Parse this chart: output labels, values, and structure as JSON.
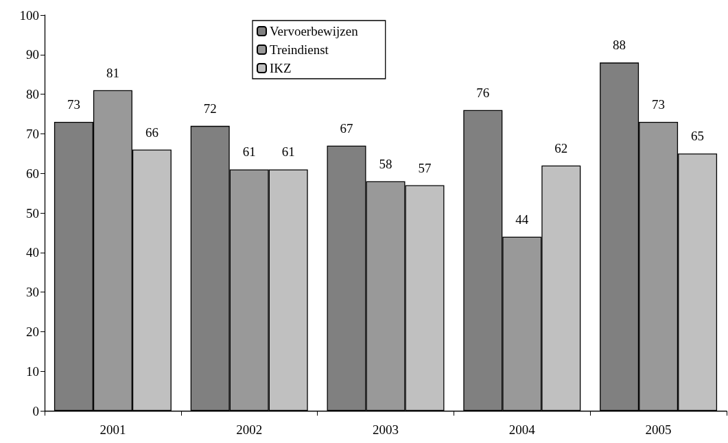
{
  "chart_data": {
    "type": "bar",
    "categories": [
      "2001",
      "2002",
      "2003",
      "2004",
      "2005"
    ],
    "series": [
      {
        "name": "Vervoerbewijzen",
        "color": "#808080",
        "values": [
          73,
          72,
          67,
          76,
          88
        ]
      },
      {
        "name": "Treindienst",
        "color": "#999999",
        "values": [
          81,
          61,
          58,
          44,
          73
        ]
      },
      {
        "name": "IKZ",
        "color": "#c0c0c0",
        "values": [
          66,
          61,
          57,
          62,
          65
        ]
      }
    ],
    "ylim": [
      0,
      100
    ],
    "yticks": [
      0,
      10,
      20,
      30,
      40,
      50,
      60,
      70,
      80,
      90,
      100
    ],
    "grid": false,
    "legend": "top",
    "data_labels": true
  }
}
